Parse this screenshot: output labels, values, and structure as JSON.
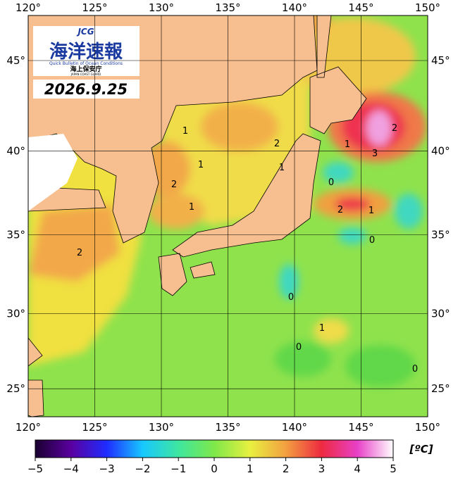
{
  "logo": {
    "emblem": "JCG",
    "title": "海洋速報",
    "subtitle": "Quick Bulletin of Ocean Conditions",
    "agency": "海上保安庁",
    "agency_en": "JAPAN COAST GUARD"
  },
  "date": "2026.9.25",
  "lon_ticks": [
    {
      "value": 120,
      "label": "120°"
    },
    {
      "value": 125,
      "label": "125°"
    },
    {
      "value": 130,
      "label": "130°"
    },
    {
      "value": 135,
      "label": "135°"
    },
    {
      "value": 140,
      "label": "140°"
    },
    {
      "value": 145,
      "label": "145°"
    },
    {
      "value": 150,
      "label": "150°"
    }
  ],
  "lat_ticks": [
    {
      "value": 45,
      "label": "45°"
    },
    {
      "value": 40,
      "label": "40°"
    },
    {
      "value": 35,
      "label": "35°"
    },
    {
      "value": 30,
      "label": "30°"
    },
    {
      "value": 25,
      "label": "25°"
    }
  ],
  "contour_labels": [
    "1",
    "1",
    "2",
    "1",
    "2",
    "1",
    "1",
    "2",
    "3",
    "0",
    "2",
    "1",
    "0",
    "2",
    "0",
    "1",
    "0",
    "0"
  ],
  "colorbar": {
    "unit": "[ºC]",
    "ticks": [
      {
        "value": -5,
        "label": "−5"
      },
      {
        "value": -4,
        "label": "−4"
      },
      {
        "value": -3,
        "label": "−3"
      },
      {
        "value": -2,
        "label": "−2"
      },
      {
        "value": -1,
        "label": "−1"
      },
      0,
      1,
      2,
      3,
      4,
      5
    ]
  }
}
